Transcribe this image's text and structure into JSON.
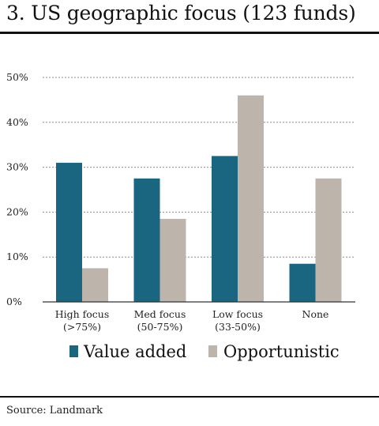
{
  "title": "3. US geographic focus (123 funds)",
  "source": "Source: Landmark",
  "colors": {
    "value_added": "#1a6680",
    "opportunistic": "#bdb4ab",
    "grid": "#8c8c8c",
    "axis": "#333333"
  },
  "chart_data": {
    "type": "bar",
    "title": "3. US geographic focus (123 funds)",
    "categories": [
      [
        "High focus",
        "(>75%)"
      ],
      [
        "Med focus",
        "(50-75%)"
      ],
      [
        "Low focus",
        "(33-50%)"
      ],
      [
        "None",
        ""
      ]
    ],
    "series": [
      {
        "name": "Value added",
        "values": [
          31,
          27.5,
          32.5,
          8.5
        ]
      },
      {
        "name": "Opportunistic",
        "values": [
          7.5,
          18.5,
          46,
          27.5
        ]
      }
    ],
    "y_ticks": [
      "0%",
      "10%",
      "20%",
      "30%",
      "40%",
      "50%"
    ],
    "ylim": [
      0,
      50
    ],
    "grid": true,
    "legend": "bottom"
  }
}
